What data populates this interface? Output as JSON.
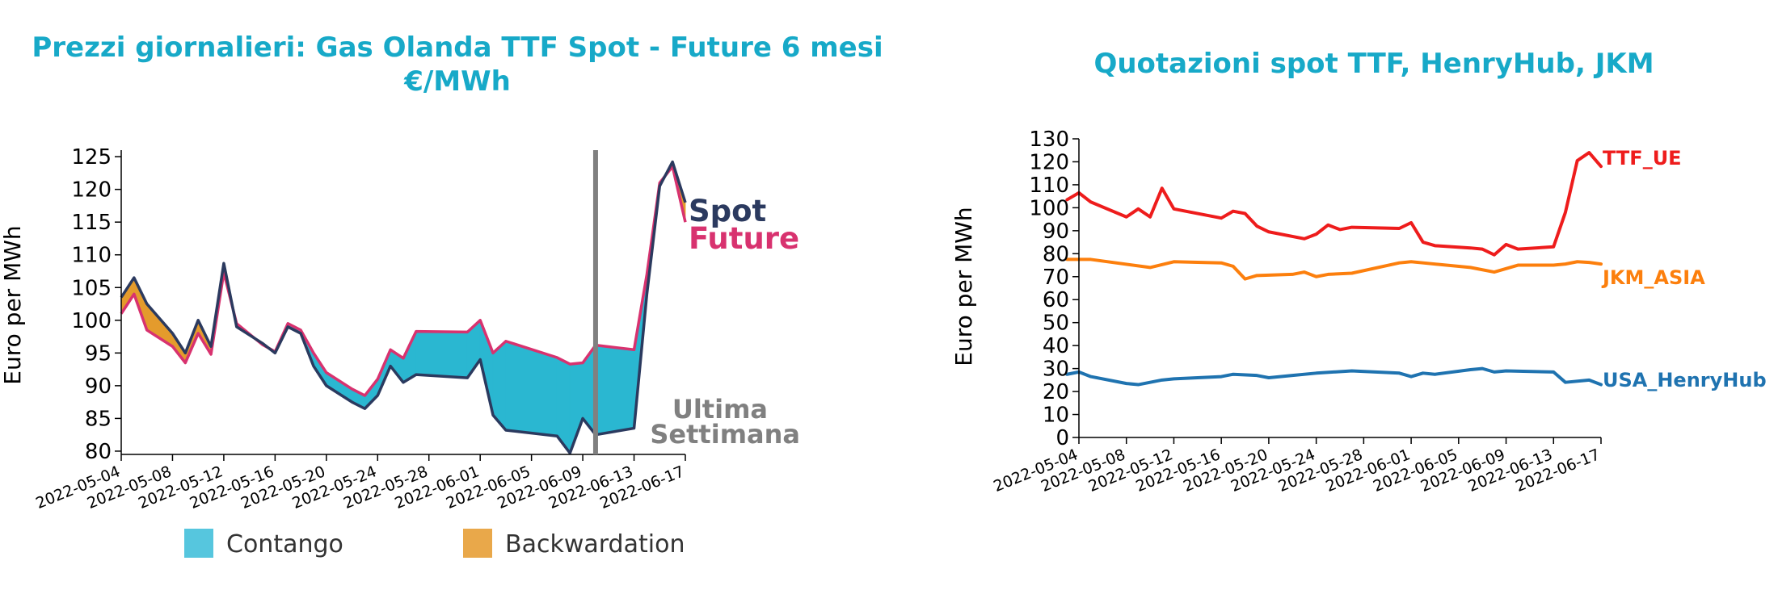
{
  "colors": {
    "title": "#17a9c8",
    "spot": "#2b3a5f",
    "future": "#d8326f",
    "contango": "#2ab7d1",
    "contango_legend": "#56c6de",
    "backwardation": "#e49b2c",
    "backwardation_legend": "#e9a84a",
    "last_week": "#808080",
    "ttf": "#ee1c1c",
    "jkm": "#fc7f0d",
    "henryhub": "#1f73b0"
  },
  "chart_data": [
    {
      "type": "area",
      "title": "Prezzi giornalieri: Gas Olanda TTF Spot - Future 6 mesi",
      "subtitle": "€/MWh",
      "ylabel": "Euro per MWh",
      "ylim": [
        79.5,
        126
      ],
      "yticks": [
        80,
        85,
        90,
        95,
        100,
        105,
        110,
        115,
        120,
        125
      ],
      "x_start": "2022-05-04",
      "x_end": "2022-06-17",
      "xticks": [
        "2022-05-04",
        "2022-05-08",
        "2022-05-12",
        "2022-05-16",
        "2022-05-20",
        "2022-05-24",
        "2022-05-28",
        "2022-06-01",
        "2022-06-05",
        "2022-06-09",
        "2022-06-13",
        "2022-06-17"
      ],
      "series": [
        {
          "name": "Spot",
          "x": [
            "2022-05-04",
            "2022-05-05",
            "2022-05-06",
            "2022-05-08",
            "2022-05-09",
            "2022-05-10",
            "2022-05-11",
            "2022-05-12",
            "2022-05-13",
            "2022-05-15",
            "2022-05-16",
            "2022-05-17",
            "2022-05-18",
            "2022-05-19",
            "2022-05-20",
            "2022-05-22",
            "2022-05-23",
            "2022-05-24",
            "2022-05-25",
            "2022-05-26",
            "2022-05-27",
            "2022-05-31",
            "2022-06-01",
            "2022-06-02",
            "2022-06-03",
            "2022-06-07",
            "2022-06-08",
            "2022-06-09",
            "2022-06-10",
            "2022-06-13",
            "2022-06-14",
            "2022-06-15",
            "2022-06-16",
            "2022-06-17"
          ],
          "values": [
            103.5,
            106.5,
            102.5,
            98,
            95,
            100,
            96,
            108.7,
            99,
            96.5,
            95,
            99,
            98,
            93,
            90,
            87.5,
            86.5,
            88.5,
            93,
            90.5,
            91.7,
            91.2,
            94,
            85.5,
            83.2,
            82.3,
            79.7,
            85,
            82.5,
            83.5,
            104,
            120.5,
            124.2,
            118
          ]
        },
        {
          "name": "Future",
          "x": [
            "2022-05-04",
            "2022-05-05",
            "2022-05-06",
            "2022-05-08",
            "2022-05-09",
            "2022-05-10",
            "2022-05-11",
            "2022-05-12",
            "2022-05-13",
            "2022-05-15",
            "2022-05-16",
            "2022-05-17",
            "2022-05-18",
            "2022-05-19",
            "2022-05-20",
            "2022-05-22",
            "2022-05-23",
            "2022-05-24",
            "2022-05-25",
            "2022-05-26",
            "2022-05-27",
            "2022-05-31",
            "2022-06-01",
            "2022-06-02",
            "2022-06-03",
            "2022-06-07",
            "2022-06-08",
            "2022-06-09",
            "2022-06-10",
            "2022-06-13",
            "2022-06-14",
            "2022-06-15",
            "2022-06-16",
            "2022-06-17"
          ],
          "values": [
            101,
            104,
            98.5,
            96,
            93.5,
            98,
            94.8,
            107.3,
            99.5,
            96.3,
            95.2,
            99.5,
            98.5,
            95,
            92,
            89.5,
            88.5,
            91,
            95.5,
            94.2,
            98.3,
            98.2,
            100,
            95,
            96.8,
            94.3,
            93.3,
            93.5,
            96.2,
            95.5,
            107,
            121,
            123.5,
            115
          ]
        }
      ],
      "series_labels": [
        "Spot",
        "Future"
      ],
      "last_week_start": "2022-06-10",
      "annotation": [
        "Ultima",
        "Settimana"
      ],
      "legend": [
        "Contango",
        "Backwardation"
      ],
      "legend_position": "bottom"
    },
    {
      "type": "line",
      "title": "Quotazioni spot TTF, HenryHub, JKM",
      "ylabel": "Euro per MWh",
      "ylim": [
        0,
        130
      ],
      "yticks": [
        0,
        10,
        20,
        30,
        40,
        50,
        60,
        70,
        80,
        90,
        100,
        110,
        120,
        130
      ],
      "x_start": "2022-05-04",
      "x_end": "2022-06-17",
      "xticks": [
        "2022-05-04",
        "2022-05-08",
        "2022-05-12",
        "2022-05-16",
        "2022-05-20",
        "2022-05-24",
        "2022-05-28",
        "2022-06-01",
        "2022-06-05",
        "2022-06-09",
        "2022-06-13",
        "2022-06-17"
      ],
      "series": [
        {
          "name": "TTF_UE",
          "x": [
            "2022-05-03",
            "2022-05-04",
            "2022-05-05",
            "2022-05-08",
            "2022-05-09",
            "2022-05-10",
            "2022-05-11",
            "2022-05-12",
            "2022-05-13",
            "2022-05-16",
            "2022-05-17",
            "2022-05-18",
            "2022-05-19",
            "2022-05-20",
            "2022-05-23",
            "2022-05-24",
            "2022-05-25",
            "2022-05-26",
            "2022-05-27",
            "2022-05-31",
            "2022-06-01",
            "2022-06-02",
            "2022-06-03",
            "2022-06-06",
            "2022-06-07",
            "2022-06-08",
            "2022-06-09",
            "2022-06-10",
            "2022-06-13",
            "2022-06-14",
            "2022-06-15",
            "2022-06-16",
            "2022-06-17"
          ],
          "values": [
            103.5,
            106.5,
            102.5,
            96,
            99.5,
            96,
            108.5,
            99.5,
            98.5,
            95.5,
            98.5,
            97.5,
            92,
            89.5,
            86.5,
            88.5,
            92.5,
            90.5,
            91.5,
            91,
            93.5,
            85,
            83.5,
            82.5,
            82,
            79.5,
            84,
            82,
            83,
            98,
            120.5,
            124,
            118
          ]
        },
        {
          "name": "JKM_ASIA",
          "x": [
            "2022-05-03",
            "2022-05-05",
            "2022-05-10",
            "2022-05-12",
            "2022-05-16",
            "2022-05-17",
            "2022-05-18",
            "2022-05-19",
            "2022-05-22",
            "2022-05-23",
            "2022-05-24",
            "2022-05-25",
            "2022-05-27",
            "2022-05-31",
            "2022-06-01",
            "2022-06-02",
            "2022-06-06",
            "2022-06-08",
            "2022-06-10",
            "2022-06-13",
            "2022-06-14",
            "2022-06-15",
            "2022-06-16",
            "2022-06-17"
          ],
          "values": [
            77.5,
            77.5,
            74,
            76.5,
            76,
            74.5,
            69,
            70.5,
            71,
            72,
            70,
            71,
            71.5,
            76,
            76.5,
            76,
            74,
            72,
            75,
            75,
            75.5,
            76.5,
            76.2,
            75.5
          ]
        },
        {
          "name": "USA_HenryHub",
          "x": [
            "2022-05-03",
            "2022-05-04",
            "2022-05-05",
            "2022-05-08",
            "2022-05-09",
            "2022-05-11",
            "2022-05-12",
            "2022-05-16",
            "2022-05-17",
            "2022-05-19",
            "2022-05-20",
            "2022-05-22",
            "2022-05-24",
            "2022-05-27",
            "2022-05-31",
            "2022-06-01",
            "2022-06-02",
            "2022-06-03",
            "2022-06-06",
            "2022-06-07",
            "2022-06-08",
            "2022-06-09",
            "2022-06-13",
            "2022-06-14",
            "2022-06-16",
            "2022-06-17"
          ],
          "values": [
            27.5,
            28.5,
            26.5,
            23.5,
            23,
            25,
            25.5,
            26.5,
            27.5,
            27,
            26,
            27,
            28,
            29,
            28,
            26.5,
            28,
            27.5,
            29.5,
            30,
            28.5,
            29,
            28.5,
            24,
            25,
            23
          ]
        }
      ],
      "series_labels": [
        "TTF_UE",
        "JKM_ASIA",
        "USA_HenryHub"
      ]
    }
  ]
}
